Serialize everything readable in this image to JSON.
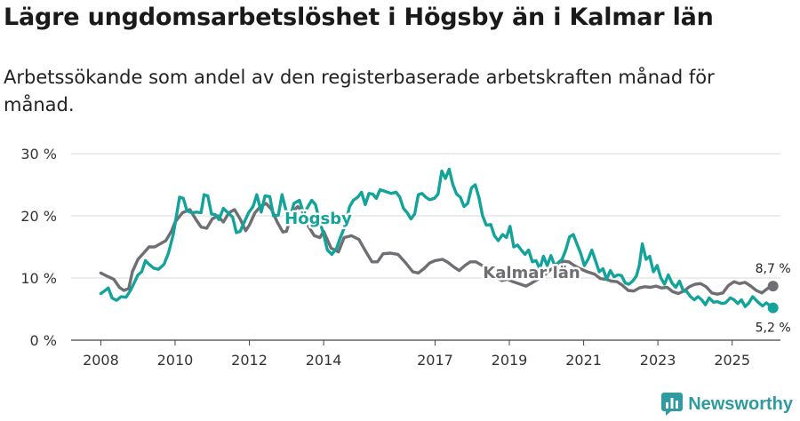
{
  "title": "Lägre ungdomsarbetslöshet i Högsby än i Kalmar län",
  "subtitle": "Arbetssökande som andel av den registerbaserade arbetskraften månad för månad.",
  "brand": {
    "name": "Newsworthy",
    "icon": "bar-chart-logo-icon",
    "color": "#2f9aa0"
  },
  "chart_data": {
    "type": "line",
    "title": "Lägre ungdomsarbetslöshet i Högsby än i Kalmar län",
    "xlabel": "",
    "ylabel": "",
    "xlim": [
      2007.2,
      2026.3
    ],
    "ylim": [
      0,
      30
    ],
    "x_ticks": [
      2008,
      2010,
      2012,
      2014,
      2017,
      2019,
      2021,
      2023,
      2025
    ],
    "x_tick_labels": [
      "2008",
      "2010",
      "2012",
      "2014",
      "2017",
      "2019",
      "2021",
      "2023",
      "2025"
    ],
    "y_ticks": [
      0,
      10,
      20,
      30
    ],
    "y_tick_labels": [
      "0 %",
      "10 %",
      "20 %",
      "30 %"
    ],
    "grid": true,
    "series": [
      {
        "name": "Kalmar län",
        "color": "#6e6e73",
        "end_label": "8,7 %",
        "points": [
          [
            2008.0,
            10.8
          ],
          [
            2008.2,
            10.2
          ],
          [
            2008.35,
            9.8
          ],
          [
            2008.5,
            8.5
          ],
          [
            2008.62,
            8.0
          ],
          [
            2008.75,
            8.3
          ],
          [
            2008.85,
            11.0
          ],
          [
            2009.0,
            13.0
          ],
          [
            2009.15,
            14.0
          ],
          [
            2009.3,
            15.0
          ],
          [
            2009.45,
            15.0
          ],
          [
            2009.6,
            15.5
          ],
          [
            2009.75,
            16.0
          ],
          [
            2009.9,
            17.5
          ],
          [
            2010.0,
            19.0
          ],
          [
            2010.2,
            20.5
          ],
          [
            2010.4,
            21.0
          ],
          [
            2010.55,
            19.5
          ],
          [
            2010.7,
            18.2
          ],
          [
            2010.85,
            18.0
          ],
          [
            2011.0,
            19.5
          ],
          [
            2011.15,
            20.0
          ],
          [
            2011.3,
            19.0
          ],
          [
            2011.45,
            20.5
          ],
          [
            2011.6,
            21.0
          ],
          [
            2011.75,
            19.5
          ],
          [
            2011.9,
            17.6
          ],
          [
            2012.0,
            18.5
          ],
          [
            2012.15,
            20.5
          ],
          [
            2012.3,
            21.5
          ],
          [
            2012.45,
            22.0
          ],
          [
            2012.6,
            21.0
          ],
          [
            2012.75,
            19.0
          ],
          [
            2012.9,
            17.4
          ],
          [
            2013.0,
            17.5
          ],
          [
            2013.15,
            20.5
          ],
          [
            2013.3,
            21.5
          ],
          [
            2013.45,
            20.5
          ],
          [
            2013.6,
            18.2
          ],
          [
            2013.75,
            16.8
          ],
          [
            2013.9,
            16.5
          ],
          [
            2014.0,
            17.5
          ],
          [
            2014.2,
            14.8
          ],
          [
            2014.4,
            14.2
          ],
          [
            2014.55,
            16.5
          ],
          [
            2014.75,
            16.8
          ],
          [
            2014.95,
            16.2
          ],
          [
            2015.1,
            14.6
          ],
          [
            2015.3,
            12.6
          ],
          [
            2015.45,
            12.6
          ],
          [
            2015.6,
            13.9
          ],
          [
            2015.8,
            14.0
          ],
          [
            2016.0,
            13.8
          ],
          [
            2016.2,
            12.5
          ],
          [
            2016.4,
            11.0
          ],
          [
            2016.55,
            10.8
          ],
          [
            2016.7,
            11.5
          ],
          [
            2016.85,
            12.4
          ],
          [
            2017.0,
            12.8
          ],
          [
            2017.2,
            13.0
          ],
          [
            2017.35,
            12.5
          ],
          [
            2017.5,
            11.8
          ],
          [
            2017.65,
            11.2
          ],
          [
            2017.8,
            12.0
          ],
          [
            2017.95,
            12.6
          ],
          [
            2018.1,
            12.6
          ],
          [
            2018.3,
            11.9
          ],
          [
            2018.5,
            10.8
          ],
          [
            2018.65,
            10.0
          ],
          [
            2018.8,
            9.6
          ],
          [
            2018.95,
            9.8
          ],
          [
            2019.1,
            9.4
          ],
          [
            2019.3,
            9.0
          ],
          [
            2019.45,
            8.7
          ],
          [
            2019.6,
            9.2
          ],
          [
            2019.8,
            9.9
          ],
          [
            2019.95,
            10.5
          ],
          [
            2020.1,
            11.3
          ],
          [
            2020.3,
            12.0
          ],
          [
            2020.45,
            12.7
          ],
          [
            2020.6,
            12.6
          ],
          [
            2020.75,
            12.0
          ],
          [
            2020.9,
            11.5
          ],
          [
            2021.1,
            11.0
          ],
          [
            2021.3,
            10.6
          ],
          [
            2021.45,
            9.9
          ],
          [
            2021.6,
            9.8
          ],
          [
            2021.75,
            9.5
          ],
          [
            2021.9,
            9.4
          ],
          [
            2022.05,
            8.8
          ],
          [
            2022.2,
            8.0
          ],
          [
            2022.35,
            7.9
          ],
          [
            2022.5,
            8.4
          ],
          [
            2022.65,
            8.6
          ],
          [
            2022.8,
            8.5
          ],
          [
            2022.95,
            8.7
          ],
          [
            2023.1,
            8.4
          ],
          [
            2023.25,
            8.5
          ],
          [
            2023.4,
            7.8
          ],
          [
            2023.55,
            7.5
          ],
          [
            2023.7,
            7.9
          ],
          [
            2023.85,
            8.6
          ],
          [
            2024.0,
            9.0
          ],
          [
            2024.15,
            9.1
          ],
          [
            2024.3,
            8.6
          ],
          [
            2024.45,
            7.6
          ],
          [
            2024.6,
            7.4
          ],
          [
            2024.75,
            7.6
          ],
          [
            2024.9,
            8.8
          ],
          [
            2025.05,
            9.4
          ],
          [
            2025.2,
            9.1
          ],
          [
            2025.35,
            9.3
          ],
          [
            2025.5,
            8.7
          ],
          [
            2025.65,
            8.0
          ],
          [
            2025.8,
            7.6
          ],
          [
            2025.95,
            8.3
          ],
          [
            2026.1,
            8.7
          ]
        ]
      },
      {
        "name": "Högsby",
        "color": "#14a39a",
        "end_label": "5,2 %",
        "points": [
          [
            2008.0,
            7.5
          ],
          [
            2008.12,
            8.0
          ],
          [
            2008.2,
            8.4
          ],
          [
            2008.3,
            6.8
          ],
          [
            2008.42,
            6.4
          ],
          [
            2008.55,
            7.0
          ],
          [
            2008.68,
            6.9
          ],
          [
            2008.8,
            8.0
          ],
          [
            2008.92,
            9.5
          ],
          [
            2009.0,
            10.5
          ],
          [
            2009.1,
            11.0
          ],
          [
            2009.2,
            12.8
          ],
          [
            2009.3,
            12.2
          ],
          [
            2009.42,
            11.6
          ],
          [
            2009.55,
            11.4
          ],
          [
            2009.7,
            12.2
          ],
          [
            2009.82,
            14.0
          ],
          [
            2009.95,
            17.0
          ],
          [
            2010.05,
            20.5
          ],
          [
            2010.12,
            23.0
          ],
          [
            2010.22,
            22.8
          ],
          [
            2010.32,
            20.8
          ],
          [
            2010.45,
            20.5
          ],
          [
            2010.58,
            20.6
          ],
          [
            2010.7,
            20.5
          ],
          [
            2010.78,
            23.4
          ],
          [
            2010.88,
            23.2
          ],
          [
            2010.98,
            20.3
          ],
          [
            2011.08,
            20.2
          ],
          [
            2011.18,
            19.4
          ],
          [
            2011.3,
            21.2
          ],
          [
            2011.42,
            20.5
          ],
          [
            2011.55,
            19.8
          ],
          [
            2011.65,
            17.3
          ],
          [
            2011.75,
            17.5
          ],
          [
            2011.88,
            19.2
          ],
          [
            2011.98,
            20.5
          ],
          [
            2012.1,
            21.5
          ],
          [
            2012.2,
            23.4
          ],
          [
            2012.32,
            20.6
          ],
          [
            2012.42,
            23.2
          ],
          [
            2012.55,
            23.1
          ],
          [
            2012.65,
            20.0
          ],
          [
            2012.78,
            20.1
          ],
          [
            2012.88,
            23.4
          ],
          [
            2012.98,
            21.0
          ],
          [
            2013.1,
            19.8
          ],
          [
            2013.2,
            22.0
          ],
          [
            2013.35,
            22.5
          ],
          [
            2013.48,
            20.0
          ],
          [
            2013.55,
            21.2
          ],
          [
            2013.68,
            22.5
          ],
          [
            2013.78,
            21.8
          ],
          [
            2013.9,
            19.0
          ],
          [
            2014.0,
            17.0
          ],
          [
            2014.1,
            14.5
          ],
          [
            2014.22,
            13.8
          ],
          [
            2014.35,
            14.8
          ],
          [
            2014.45,
            16.5
          ],
          [
            2014.55,
            18.0
          ],
          [
            2014.7,
            21.5
          ],
          [
            2014.8,
            22.5
          ],
          [
            2014.92,
            23.0
          ],
          [
            2015.02,
            23.8
          ],
          [
            2015.12,
            21.8
          ],
          [
            2015.22,
            23.6
          ],
          [
            2015.32,
            23.5
          ],
          [
            2015.42,
            22.8
          ],
          [
            2015.52,
            24.2
          ],
          [
            2015.62,
            24.0
          ],
          [
            2015.72,
            23.8
          ],
          [
            2015.82,
            23.6
          ],
          [
            2015.95,
            23.8
          ],
          [
            2016.05,
            23.0
          ],
          [
            2016.15,
            21.2
          ],
          [
            2016.25,
            20.5
          ],
          [
            2016.35,
            19.5
          ],
          [
            2016.45,
            20.3
          ],
          [
            2016.55,
            23.4
          ],
          [
            2016.65,
            23.6
          ],
          [
            2016.75,
            23.0
          ],
          [
            2016.85,
            22.6
          ],
          [
            2016.98,
            22.8
          ],
          [
            2017.08,
            23.5
          ],
          [
            2017.18,
            27.2
          ],
          [
            2017.28,
            26.0
          ],
          [
            2017.38,
            27.5
          ],
          [
            2017.48,
            25.0
          ],
          [
            2017.58,
            23.5
          ],
          [
            2017.68,
            23.0
          ],
          [
            2017.78,
            21.5
          ],
          [
            2017.88,
            22.0
          ],
          [
            2017.98,
            24.5
          ],
          [
            2018.08,
            25.0
          ],
          [
            2018.18,
            23.0
          ],
          [
            2018.28,
            20.0
          ],
          [
            2018.38,
            18.5
          ],
          [
            2018.5,
            18.6
          ],
          [
            2018.6,
            16.8
          ],
          [
            2018.7,
            16.0
          ],
          [
            2018.82,
            17.0
          ],
          [
            2018.92,
            16.5
          ],
          [
            2019.02,
            18.3
          ],
          [
            2019.12,
            15.0
          ],
          [
            2019.22,
            15.3
          ],
          [
            2019.32,
            14.5
          ],
          [
            2019.42,
            13.8
          ],
          [
            2019.52,
            14.5
          ],
          [
            2019.62,
            12.6
          ],
          [
            2019.72,
            12.8
          ],
          [
            2019.82,
            11.5
          ],
          [
            2019.92,
            13.5
          ],
          [
            2020.02,
            12.0
          ],
          [
            2020.12,
            13.6
          ],
          [
            2020.22,
            12.0
          ],
          [
            2020.32,
            12.5
          ],
          [
            2020.42,
            13.0
          ],
          [
            2020.52,
            14.5
          ],
          [
            2020.62,
            16.6
          ],
          [
            2020.72,
            17.0
          ],
          [
            2020.82,
            15.5
          ],
          [
            2020.92,
            14.0
          ],
          [
            2021.02,
            12.0
          ],
          [
            2021.12,
            13.0
          ],
          [
            2021.22,
            14.5
          ],
          [
            2021.32,
            12.8
          ],
          [
            2021.42,
            11.0
          ],
          [
            2021.52,
            11.5
          ],
          [
            2021.62,
            9.8
          ],
          [
            2021.72,
            11.2
          ],
          [
            2021.82,
            10.2
          ],
          [
            2021.92,
            10.5
          ],
          [
            2022.02,
            10.4
          ],
          [
            2022.12,
            9.2
          ],
          [
            2022.22,
            9.0
          ],
          [
            2022.32,
            9.5
          ],
          [
            2022.42,
            10.3
          ],
          [
            2022.5,
            12.0
          ],
          [
            2022.58,
            15.5
          ],
          [
            2022.68,
            13.0
          ],
          [
            2022.78,
            13.5
          ],
          [
            2022.88,
            11.0
          ],
          [
            2022.98,
            12.0
          ],
          [
            2023.08,
            10.0
          ],
          [
            2023.18,
            9.0
          ],
          [
            2023.28,
            10.5
          ],
          [
            2023.38,
            9.2
          ],
          [
            2023.48,
            8.5
          ],
          [
            2023.58,
            9.5
          ],
          [
            2023.68,
            8.0
          ],
          [
            2023.78,
            7.8
          ],
          [
            2023.88,
            7.0
          ],
          [
            2023.98,
            6.5
          ],
          [
            2024.08,
            7.0
          ],
          [
            2024.18,
            6.5
          ],
          [
            2024.28,
            5.7
          ],
          [
            2024.38,
            6.8
          ],
          [
            2024.5,
            6.1
          ],
          [
            2024.6,
            6.2
          ],
          [
            2024.72,
            5.9
          ],
          [
            2024.82,
            6.0
          ],
          [
            2024.95,
            6.8
          ],
          [
            2025.05,
            6.5
          ],
          [
            2025.15,
            5.9
          ],
          [
            2025.25,
            6.5
          ],
          [
            2025.35,
            5.4
          ],
          [
            2025.45,
            6.0
          ],
          [
            2025.55,
            7.0
          ],
          [
            2025.7,
            6.1
          ],
          [
            2025.82,
            5.5
          ],
          [
            2025.92,
            6.0
          ],
          [
            2026.1,
            5.2
          ]
        ]
      }
    ],
    "annotations": [
      "Högsby",
      "Kalmar län",
      "8,7 %",
      "5,2 %"
    ]
  }
}
